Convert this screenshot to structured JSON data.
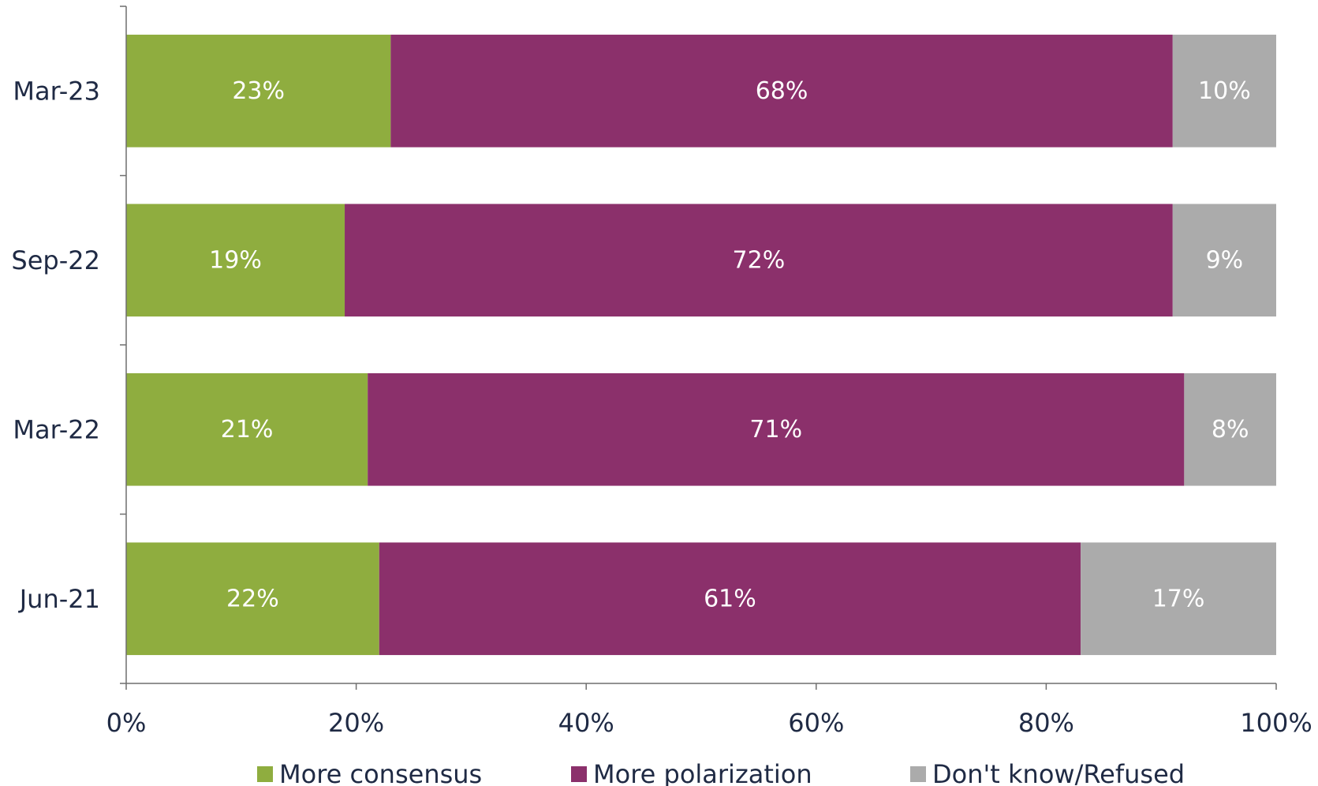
{
  "chart_data": {
    "type": "bar",
    "orientation": "horizontal",
    "stacked": true,
    "categories": [
      "Mar-23",
      "Sep-22",
      "Mar-22",
      "Jun-21"
    ],
    "series": [
      {
        "name": "More consensus",
        "values": [
          23,
          19,
          21,
          22
        ],
        "labels": [
          "23%",
          "19%",
          "21%",
          "22%"
        ],
        "color": "#8fad3f"
      },
      {
        "name": "More polarization",
        "values": [
          68,
          72,
          71,
          61
        ],
        "labels": [
          "68%",
          "72%",
          "71%",
          "61%"
        ],
        "color": "#8b306b"
      },
      {
        "name": "Don't know/Refused",
        "values": [
          10,
          9,
          8,
          17
        ],
        "labels": [
          "10%",
          "9%",
          "8%",
          "17%"
        ],
        "color": "#ababab"
      }
    ],
    "xlim": [
      0,
      100
    ],
    "xticks": [
      "0%",
      "20%",
      "40%",
      "60%",
      "80%",
      "100%"
    ],
    "xtick_values": [
      0,
      20,
      40,
      60,
      80,
      100
    ],
    "grid": false,
    "legend_position": "bottom"
  }
}
